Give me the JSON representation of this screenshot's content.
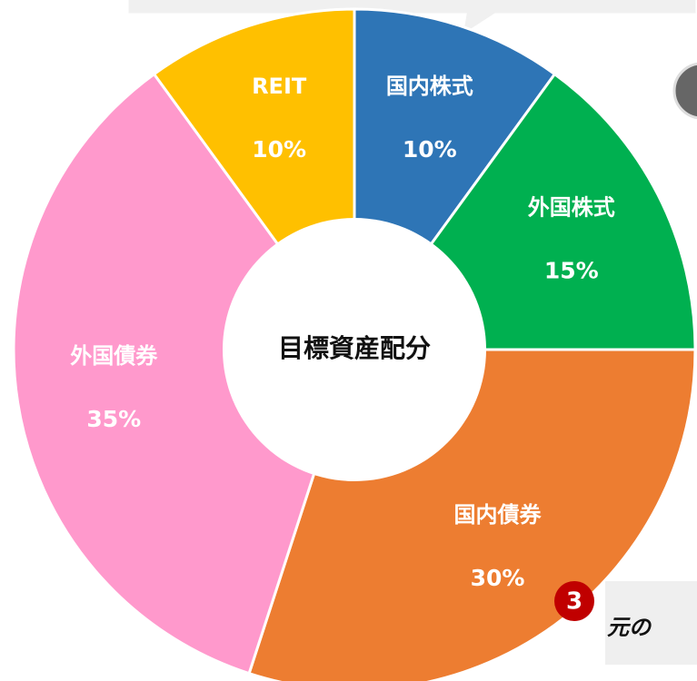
{
  "chart_data": {
    "type": "pie",
    "donut": true,
    "center_label": "目標資産配分",
    "categories": [
      "国内株式",
      "外国株式",
      "国内債券",
      "外国債券",
      "REIT"
    ],
    "values": [
      10,
      15,
      30,
      35,
      10
    ],
    "value_labels": [
      "10%",
      "15%",
      "30%",
      "35%",
      "10%"
    ],
    "colors": [
      "#2e75b6",
      "#00b050",
      "#ed7d31",
      "#ff99cc",
      "#ffc000"
    ],
    "annotations": [
      "3",
      "元の"
    ]
  }
}
